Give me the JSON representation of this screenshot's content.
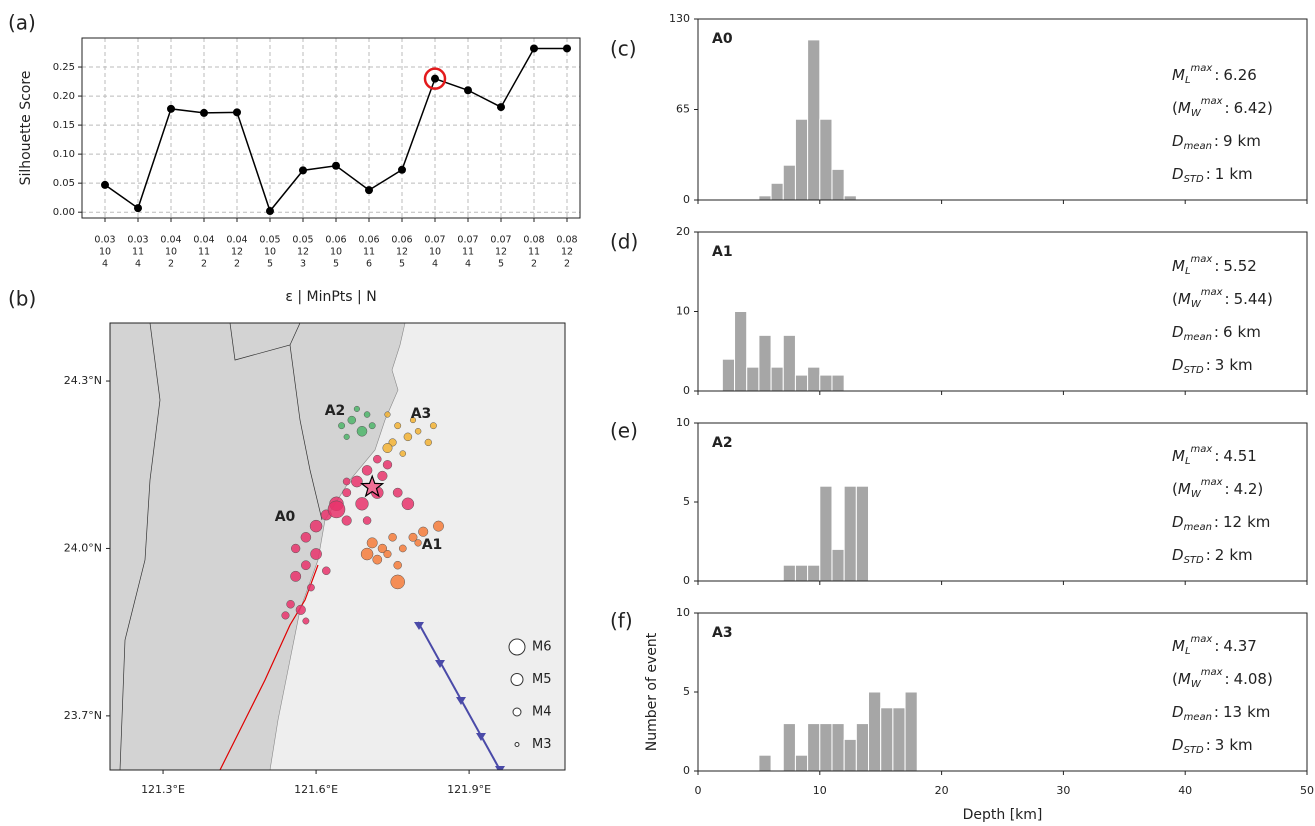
{
  "chart_data": [
    {
      "type": "line",
      "panel_label": "(a)",
      "ylabel": "Silhouette Score",
      "xlabel": "ε | MinPts | N",
      "categories": [
        [
          "0.03",
          "10",
          "4"
        ],
        [
          "0.03",
          "11",
          "4"
        ],
        [
          "0.04",
          "10",
          "2"
        ],
        [
          "0.04",
          "11",
          "2"
        ],
        [
          "0.04",
          "12",
          "2"
        ],
        [
          "0.05",
          "10",
          "5"
        ],
        [
          "0.05",
          "12",
          "3"
        ],
        [
          "0.06",
          "10",
          "5"
        ],
        [
          "0.06",
          "11",
          "6"
        ],
        [
          "0.06",
          "12",
          "5"
        ],
        [
          "0.07",
          "10",
          "4"
        ],
        [
          "0.07",
          "11",
          "4"
        ],
        [
          "0.07",
          "12",
          "5"
        ],
        [
          "0.08",
          "11",
          "2"
        ],
        [
          "0.08",
          "12",
          "2"
        ]
      ],
      "values": [
        0.047,
        0.007,
        0.178,
        0.171,
        0.172,
        0.002,
        0.072,
        0.08,
        0.038,
        0.073,
        0.23,
        0.21,
        0.181,
        0.282,
        0.282
      ],
      "color": "#000000",
      "highlight_index": 10,
      "highlight_color": "#e31a1c",
      "ylim": [
        -0.01,
        0.3
      ],
      "yticks": [
        {
          "value": 0,
          "label": "0.00"
        },
        0.05,
        {
          "value": 0.1,
          "label": "0.10"
        },
        0.15,
        {
          "value": 0.2,
          "label": "0.20"
        },
        0.25
      ],
      "grid": true
    },
    {
      "type": "map",
      "panel_label": "(b)",
      "xlim": [
        121.196,
        122.088
      ],
      "ylim": [
        23.603,
        24.404
      ],
      "xticks": [
        {
          "value": 121.3,
          "label": "121.3°E"
        },
        {
          "value": 121.6,
          "label": "121.6°E"
        },
        {
          "value": 121.9,
          "label": "121.9°E"
        }
      ],
      "yticks": [
        {
          "value": 23.7,
          "label": "23.7°N"
        },
        {
          "value": 24.0,
          "label": "24.0°N"
        },
        {
          "value": 24.3,
          "label": "24.3°N"
        }
      ],
      "series": [
        {
          "name": "A0",
          "color": "#e8336b",
          "x": [
            121.72,
            121.7,
            121.74,
            121.68,
            121.72,
            121.76,
            121.66,
            121.69,
            121.64,
            121.78,
            121.62,
            121.66,
            121.6,
            121.58,
            121.56,
            121.6,
            121.58,
            121.62,
            121.56,
            121.59,
            121.55,
            121.57,
            121.54,
            121.58,
            121.7,
            121.66,
            121.73,
            121.64
          ],
          "y": [
            24.16,
            24.14,
            24.15,
            24.12,
            24.1,
            24.1,
            24.1,
            24.08,
            24.08,
            24.08,
            24.06,
            24.05,
            24.04,
            24.02,
            24.0,
            23.99,
            23.97,
            23.96,
            23.95,
            23.93,
            23.9,
            23.89,
            23.88,
            23.87,
            24.05,
            24.12,
            24.13,
            24.07
          ],
          "magnitude": [
            4.0,
            4.5,
            4.2,
            4.8,
            5.0,
            4.3,
            4.1,
            5.2,
            5.5,
            5.0,
            4.6,
            4.4,
            5.0,
            4.5,
            4.2,
            4.8,
            4.3,
            4.0,
            4.6,
            3.8,
            4.0,
            4.4,
            3.9,
            3.6,
            4.0,
            3.8,
            4.4,
            6.26
          ]
        },
        {
          "name": "A1",
          "color": "#f47b3a",
          "x": [
            121.71,
            121.73,
            121.75,
            121.77,
            121.79,
            121.81,
            121.84,
            121.72,
            121.76,
            121.76,
            121.74,
            121.8,
            121.7
          ],
          "y": [
            24.01,
            24.0,
            24.02,
            24.0,
            24.02,
            24.03,
            24.04,
            23.98,
            23.97,
            23.94,
            23.99,
            24.01,
            23.99
          ],
          "magnitude": [
            4.6,
            4.2,
            4.0,
            3.8,
            4.1,
            4.4,
            4.6,
            4.3,
            4.0,
            5.52,
            3.9,
            3.7,
            5.0
          ]
        },
        {
          "name": "A2",
          "color": "#4db56a",
          "x": [
            121.67,
            121.69,
            121.65,
            121.7,
            121.68,
            121.71,
            121.66
          ],
          "y": [
            24.23,
            24.21,
            24.22,
            24.24,
            24.25,
            24.22,
            24.2
          ],
          "magnitude": [
            4.0,
            4.51,
            3.6,
            3.5,
            3.4,
            3.6,
            3.4
          ]
        },
        {
          "name": "A3",
          "color": "#f2b233",
          "x": [
            121.74,
            121.76,
            121.78,
            121.8,
            121.82,
            121.75,
            121.77,
            121.79,
            121.83,
            121.74
          ],
          "y": [
            24.24,
            24.22,
            24.2,
            24.21,
            24.19,
            24.19,
            24.17,
            24.23,
            24.22,
            24.18
          ],
          "magnitude": [
            3.4,
            3.6,
            4.0,
            3.5,
            3.7,
            3.9,
            3.5,
            3.4,
            3.6,
            4.37
          ]
        }
      ],
      "mainshock": {
        "x": 121.71,
        "y": 24.11
      },
      "size_legend": [
        {
          "value": 6,
          "label": "M6"
        },
        {
          "value": 5,
          "label": "M5"
        },
        {
          "value": 4,
          "label": "M4"
        },
        {
          "value": 3,
          "label": "M3"
        }
      ]
    },
    {
      "type": "histogram",
      "panel_label": "(c)",
      "name": "A0",
      "color": "#a6a6a6",
      "bins": [
        5,
        6,
        7,
        8,
        9,
        10,
        11,
        12,
        13
      ],
      "counts": [
        3,
        12,
        25,
        58,
        115,
        58,
        22,
        3
      ],
      "xlim": [
        0,
        50
      ],
      "xticks": [
        0,
        10,
        20,
        30,
        40,
        50
      ],
      "show_xtick_labels": false,
      "ylim": [
        0,
        130
      ],
      "yticks": [
        0,
        65,
        130
      ],
      "separator": ":",
      "unit": "km",
      "stats": [
        {
          "symbol": "M",
          "sub": "L",
          "sup": "max",
          "value": 6.26
        },
        {
          "prefix": "(",
          "symbol": "M",
          "sub": "W",
          "sup": "max",
          "value": 6.42,
          "suffix": ")"
        },
        {
          "symbol": "D",
          "sub": "mean",
          "value": 9
        },
        {
          "symbol": "D",
          "sub": "STD",
          "value": 1
        }
      ]
    },
    {
      "type": "histogram",
      "panel_label": "(d)",
      "name": "A1",
      "color": "#a6a6a6",
      "bins": [
        2,
        3,
        4,
        5,
        6,
        7,
        8,
        9,
        10,
        11,
        12
      ],
      "counts": [
        4,
        10,
        3,
        7,
        3,
        7,
        2,
        3,
        2,
        2
      ],
      "xlim": [
        0,
        50
      ],
      "xticks": [
        0,
        10,
        20,
        30,
        40,
        50
      ],
      "show_xtick_labels": false,
      "ylim": [
        0,
        20
      ],
      "yticks": [
        0,
        10,
        20
      ],
      "separator": ":",
      "unit": "km",
      "stats": [
        {
          "symbol": "M",
          "sub": "L",
          "sup": "max",
          "value": 5.52
        },
        {
          "prefix": "(",
          "symbol": "M",
          "sub": "W",
          "sup": "max",
          "value": 5.44,
          "suffix": ")"
        },
        {
          "symbol": "D",
          "sub": "mean",
          "value": 6
        },
        {
          "symbol": "D",
          "sub": "STD",
          "value": 3
        }
      ]
    },
    {
      "type": "histogram",
      "panel_label": "(e)",
      "name": "A2",
      "color": "#a6a6a6",
      "bins": [
        7,
        8,
        9,
        10,
        11,
        12,
        13,
        14
      ],
      "counts": [
        1,
        1,
        1,
        6,
        2,
        6,
        6
      ],
      "xlim": [
        0,
        50
      ],
      "xticks": [
        0,
        10,
        20,
        30,
        40,
        50
      ],
      "show_xtick_labels": false,
      "ylim": [
        0,
        10
      ],
      "yticks": [
        0,
        5,
        10
      ],
      "separator": ":",
      "unit": "km",
      "stats": [
        {
          "symbol": "M",
          "sub": "L",
          "sup": "max",
          "value": 4.51
        },
        {
          "prefix": "(",
          "symbol": "M",
          "sub": "W",
          "sup": "max",
          "value": 4.2,
          "suffix": ")"
        },
        {
          "symbol": "D",
          "sub": "mean",
          "value": 12
        },
        {
          "symbol": "D",
          "sub": "STD",
          "value": 2
        }
      ]
    },
    {
      "type": "histogram",
      "panel_label": "(f)",
      "name": "A3",
      "color": "#a6a6a6",
      "bins": [
        5,
        6,
        7,
        8,
        9,
        10,
        11,
        12,
        13,
        14,
        15,
        16,
        17,
        18
      ],
      "counts": [
        1,
        0,
        3,
        1,
        3,
        3,
        3,
        2,
        3,
        5,
        4,
        4,
        5
      ],
      "xlim": [
        0,
        50
      ],
      "xticks": [
        0,
        10,
        20,
        30,
        40,
        50
      ],
      "show_xtick_labels": true,
      "ylim": [
        0,
        10
      ],
      "yticks": [
        0,
        5,
        10
      ],
      "xlabel": "Depth [km]",
      "ylabel": "Number of event",
      "separator": ":",
      "unit": "km",
      "stats": [
        {
          "symbol": "M",
          "sub": "L",
          "sup": "max",
          "value": 4.37
        },
        {
          "prefix": "(",
          "symbol": "M",
          "sub": "W",
          "sup": "max",
          "value": 4.08,
          "suffix": ")"
        },
        {
          "symbol": "D",
          "sub": "mean",
          "value": 13
        },
        {
          "symbol": "D",
          "sub": "STD",
          "value": 3
        }
      ]
    }
  ]
}
